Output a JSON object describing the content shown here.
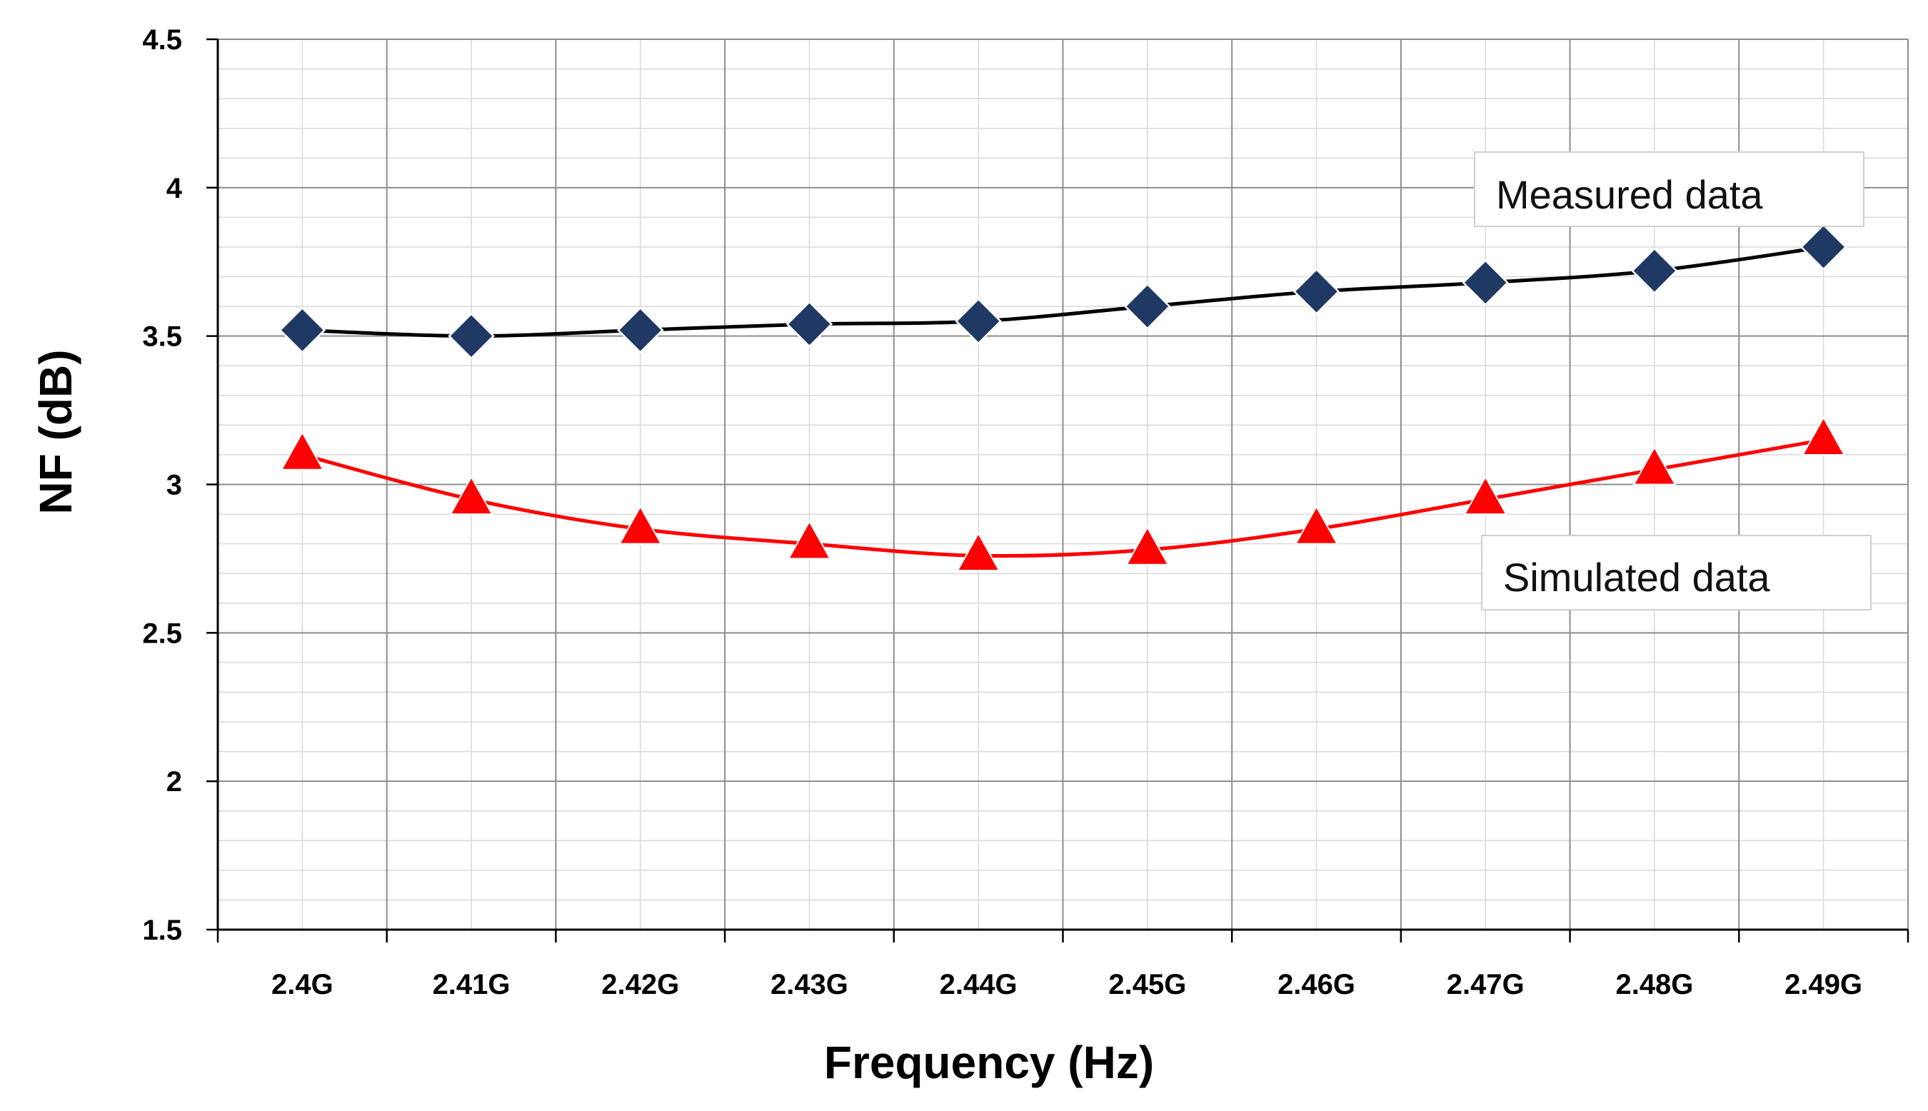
{
  "chart_data": {
    "type": "line",
    "title": "",
    "xlabel": "Frequency (Hz)",
    "ylabel": "NF (dB)",
    "categories": [
      "2.4G",
      "2.41G",
      "2.42G",
      "2.43G",
      "2.44G",
      "2.45G",
      "2.46G",
      "2.47G",
      "2.48G",
      "2.49G"
    ],
    "ylim": [
      1.5,
      4.5
    ],
    "yticks": [
      "1.5",
      "2",
      "2.5",
      "3",
      "3.5",
      "4",
      "4.5"
    ],
    "grid": true,
    "series": [
      {
        "name": "Measured data",
        "marker": "diamond",
        "line_color": "#000000",
        "marker_color": "#1f3864",
        "values": [
          3.52,
          3.5,
          3.52,
          3.54,
          3.55,
          3.6,
          3.65,
          3.68,
          3.72,
          3.8
        ]
      },
      {
        "name": "Simulated data",
        "marker": "triangle",
        "line_color": "#ff0000",
        "marker_color": "#ff0000",
        "values": [
          3.1,
          2.95,
          2.85,
          2.8,
          2.76,
          2.78,
          2.85,
          2.95,
          3.05,
          3.15
        ]
      }
    ],
    "annotations": [
      "Measured data",
      "Simulated data"
    ]
  }
}
